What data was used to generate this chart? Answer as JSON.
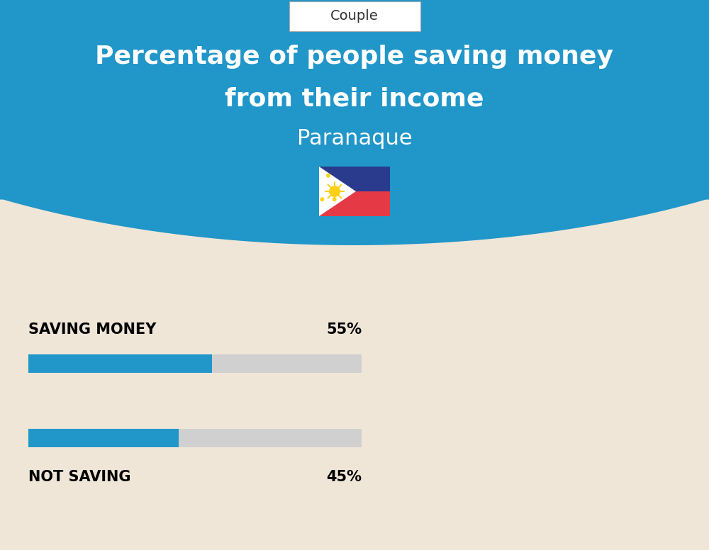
{
  "title_line1": "Percentage of people saving money",
  "title_line2": "from their income",
  "subtitle": "Paranaque",
  "tab_label": "Couple",
  "bg_color": "#F0E6D8",
  "header_bg_color": "#2196C9",
  "bar_color": "#2196C9",
  "bar_bg_color": "#D0D0D0",
  "categories": [
    "SAVING MONEY",
    "NOT SAVING"
  ],
  "values": [
    55,
    45
  ],
  "value_labels": [
    "55%",
    "45%"
  ],
  "bar_label_color": "#000000",
  "title_color": "#FFFFFF",
  "subtitle_color": "#FFFFFF",
  "tab_text_color": "#333333",
  "fig_width": 10.0,
  "fig_height": 7.76,
  "dpi": 100
}
